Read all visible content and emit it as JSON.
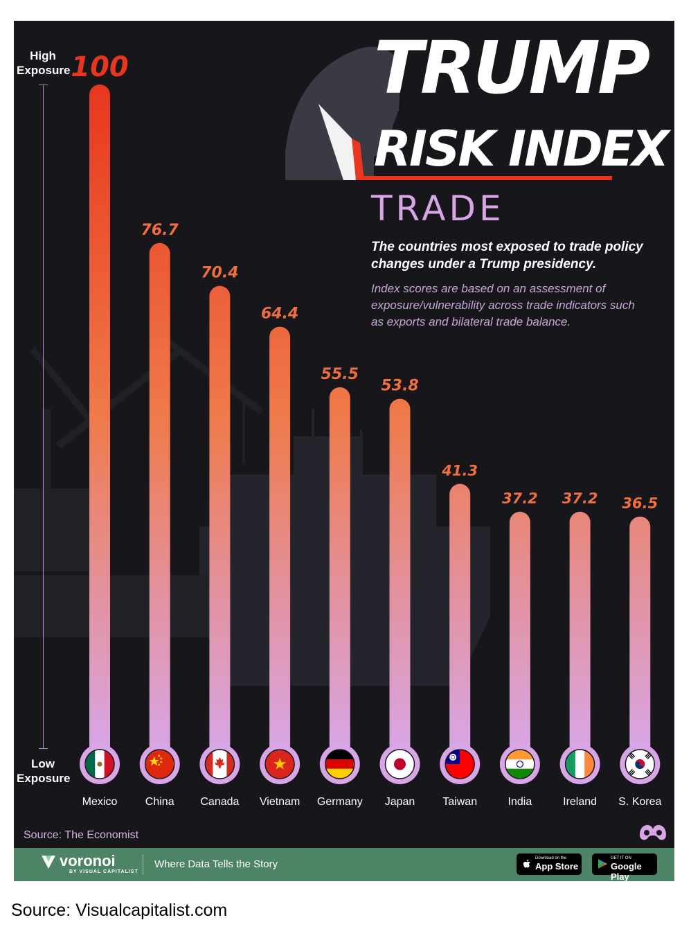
{
  "headline": {
    "line1": "TRUMP",
    "line2": "RISK INDEX"
  },
  "category": "TRADE",
  "subtitle": "The countries most exposed to trade policy changes under a Trump presidency.",
  "description": "Index scores are based on an assessment of exposure/vulnerability across trade indicators such as exports and bilateral trade balance.",
  "axis": {
    "high": "High Exposure",
    "low": "Low Exposure"
  },
  "source": "Source: The Economist",
  "footer": {
    "brand": "voronoi",
    "brand_sub": "BY VISUAL CAPITALIST",
    "tagline": "Where Data Tells the Story",
    "app_store_small": "Download on the",
    "app_store_big": "App Store",
    "google_play_small": "GET IT ON",
    "google_play_big": "Google Play"
  },
  "page_source": "Source: Visualcapitalist.com",
  "colors": {
    "background": "#16161b",
    "bar_top": "#e8361f",
    "bar_mid": "#ef7a4a",
    "bar_bottom": "#d8a6e6",
    "footer": "#4d8466"
  },
  "chart_data": {
    "type": "bar",
    "title": "TRUMP RISK INDEX",
    "subtitle": "TRADE",
    "categories": [
      "Mexico",
      "China",
      "Canada",
      "Vietnam",
      "Germany",
      "Japan",
      "Taiwan",
      "India",
      "Ireland",
      "S. Korea"
    ],
    "values": [
      100,
      76.7,
      70.4,
      64.4,
      55.5,
      53.8,
      41.3,
      37.2,
      37.2,
      36.5
    ],
    "value_labels": [
      "100",
      "76.7",
      "70.4",
      "64.4",
      "55.5",
      "53.8",
      "41.3",
      "37.2",
      "37.2",
      "36.5"
    ],
    "flag_icons": [
      "mexico-flag-icon",
      "china-flag-icon",
      "canada-flag-icon",
      "vietnam-flag-icon",
      "germany-flag-icon",
      "japan-flag-icon",
      "taiwan-flag-icon",
      "india-flag-icon",
      "ireland-flag-icon",
      "south-korea-flag-icon"
    ],
    "ylim": [
      0,
      100
    ],
    "ylabel_top": "High Exposure",
    "ylabel_bottom": "Low Exposure",
    "grid": false,
    "legend": "none"
  }
}
